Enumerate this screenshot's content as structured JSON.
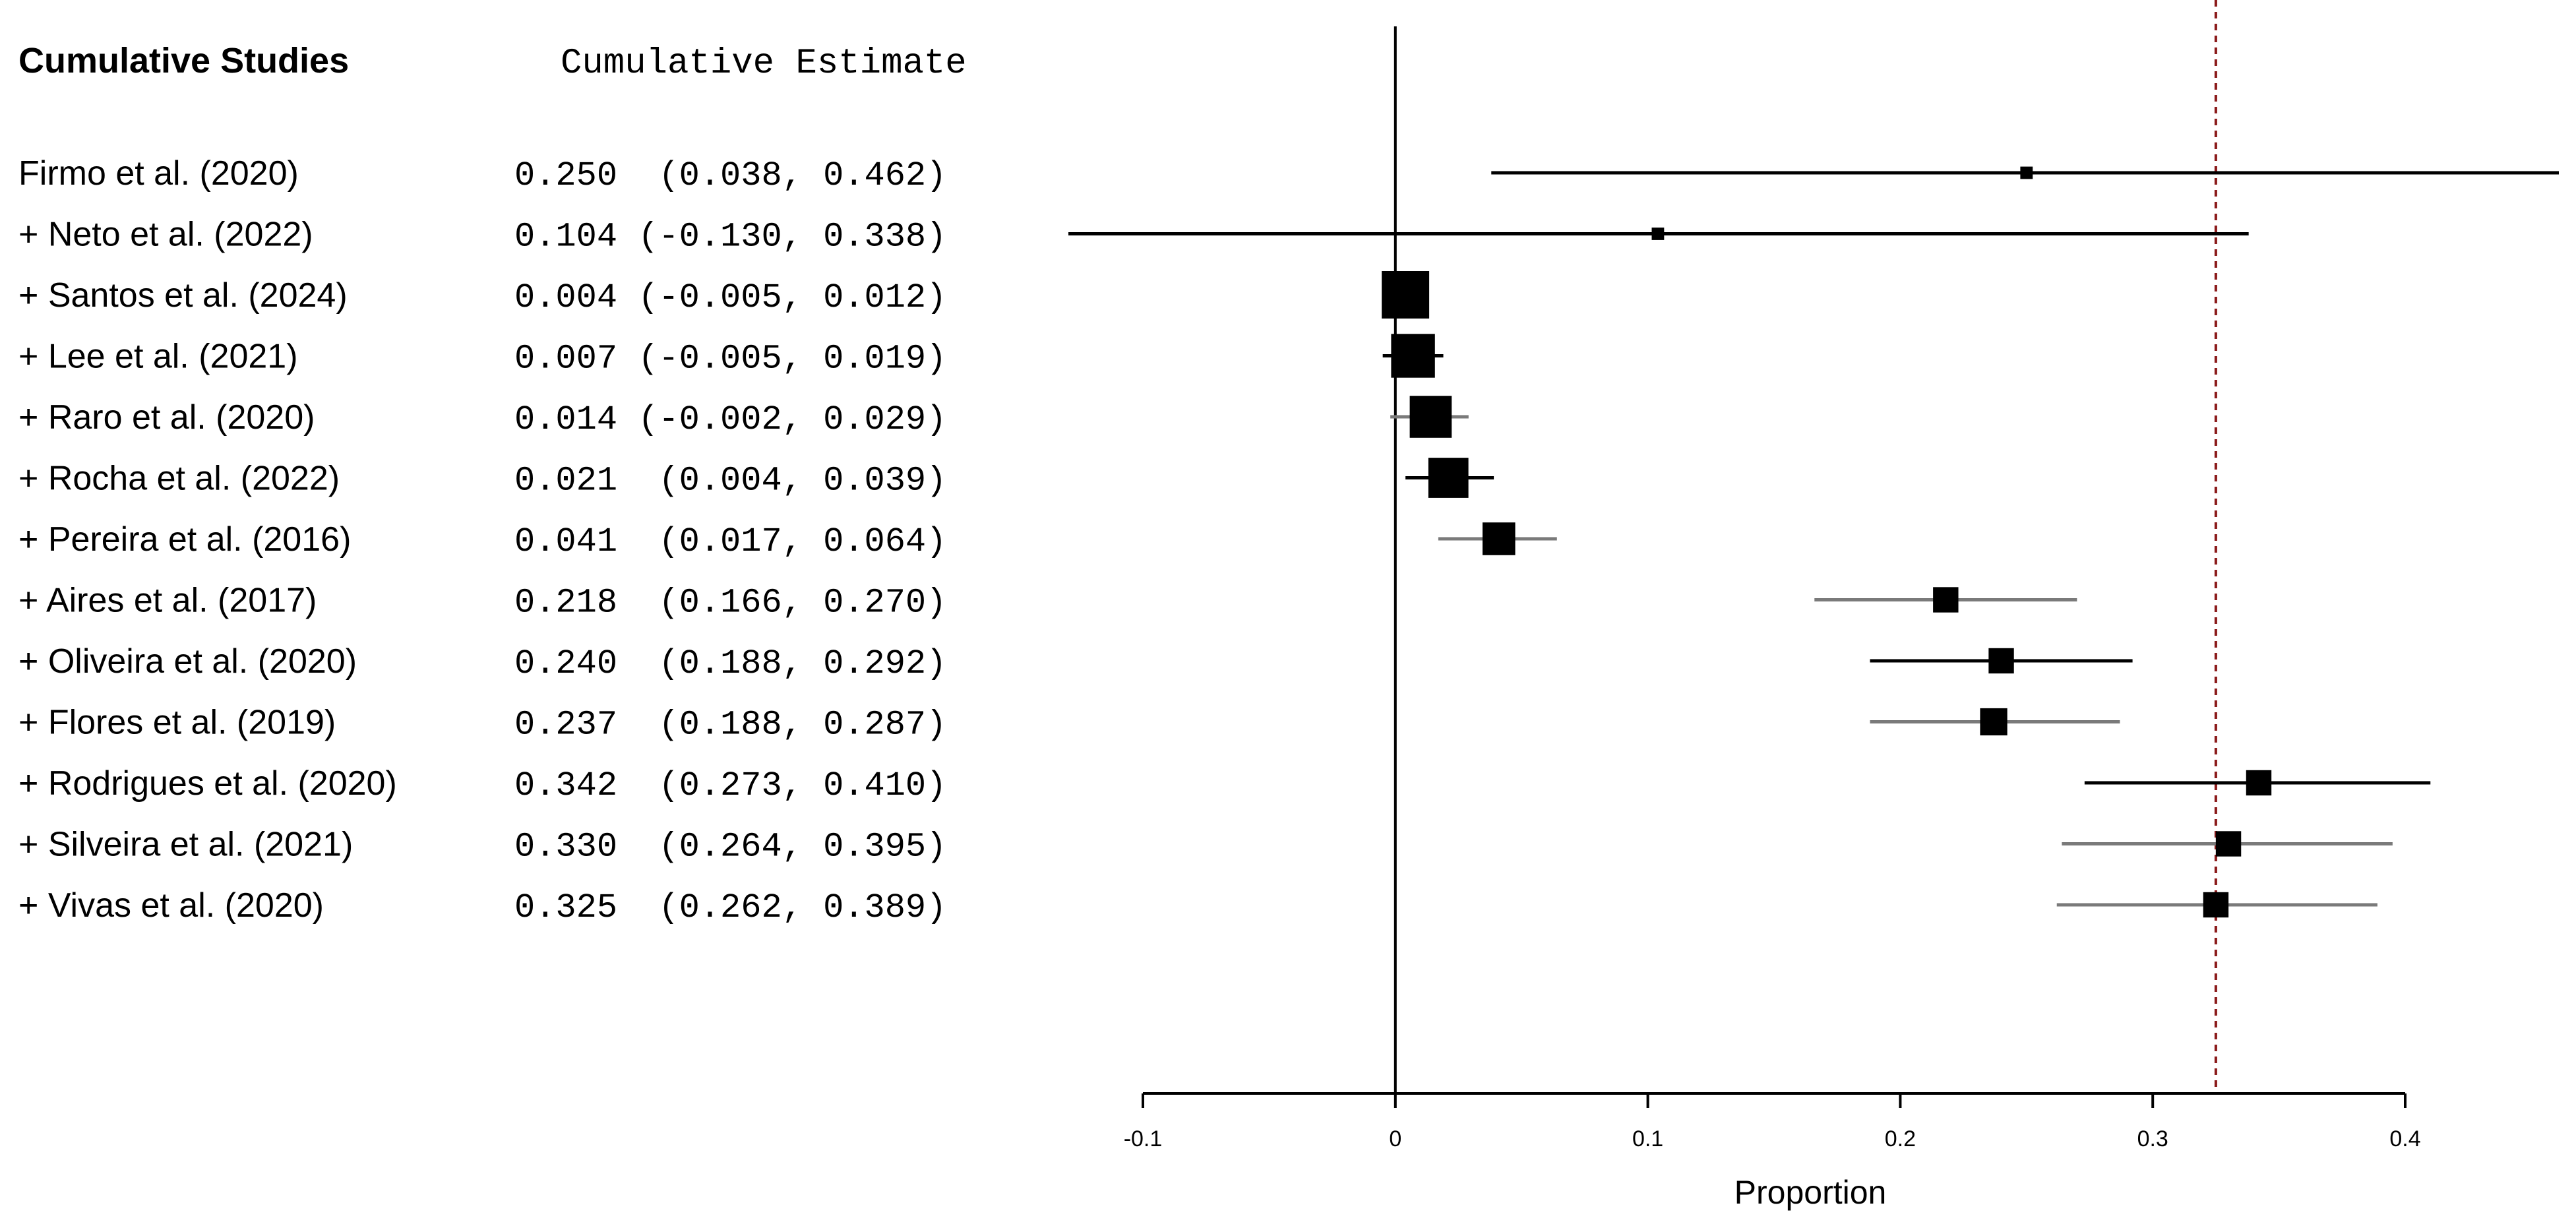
{
  "chart_data": {
    "type": "forest",
    "headers": {
      "studies": "Cumulative Studies",
      "estimate": "Cumulative Estimate"
    },
    "xlabel": "Proportion",
    "xlim": [
      -0.1,
      0.4
    ],
    "ticks": [
      -0.1,
      0,
      0.1,
      0.2,
      0.3,
      0.4
    ],
    "tick_labels": [
      "-0.1",
      "0",
      "0.1",
      "0.2",
      "0.3",
      "0.4"
    ],
    "reference_line": 0,
    "summary_line": 0.325,
    "colors": {
      "ci_black": "#000000",
      "ci_gray": "#7a7a7a",
      "summary_line": "#8b1a1a"
    },
    "rows": [
      {
        "label": "Firmo et al. (2020)",
        "estimate_text": "0.250  (0.038, 0.462)",
        "est": 0.25,
        "lo": 0.038,
        "hi": 0.462,
        "weight": 0.05,
        "ci_color": "black"
      },
      {
        "label": "+ Neto et al. (2022)",
        "estimate_text": "0.104 (-0.130, 0.338)",
        "est": 0.104,
        "lo": -0.13,
        "hi": 0.338,
        "weight": 0.05,
        "ci_color": "black"
      },
      {
        "label": "+ Santos et al. (2024)",
        "estimate_text": "0.004 (-0.005, 0.012)",
        "est": 0.004,
        "lo": -0.005,
        "hi": 0.012,
        "weight": 1.0,
        "ci_color": "gray"
      },
      {
        "label": "+ Lee et al. (2021)",
        "estimate_text": "0.007 (-0.005, 0.019)",
        "est": 0.007,
        "lo": -0.005,
        "hi": 0.019,
        "weight": 0.9,
        "ci_color": "black"
      },
      {
        "label": "+ Raro et al. (2020)",
        "estimate_text": "0.014 (-0.002, 0.029)",
        "est": 0.014,
        "lo": -0.002,
        "hi": 0.029,
        "weight": 0.85,
        "ci_color": "gray"
      },
      {
        "label": "+ Rocha et al. (2022)",
        "estimate_text": "0.021  (0.004, 0.039)",
        "est": 0.021,
        "lo": 0.004,
        "hi": 0.039,
        "weight": 0.8,
        "ci_color": "black"
      },
      {
        "label": "+ Pereira et al. (2016)",
        "estimate_text": "0.041  (0.017, 0.064)",
        "est": 0.041,
        "lo": 0.017,
        "hi": 0.064,
        "weight": 0.6,
        "ci_color": "gray"
      },
      {
        "label": "+ Aires et al. (2017)",
        "estimate_text": "0.218  (0.166, 0.270)",
        "est": 0.218,
        "lo": 0.166,
        "hi": 0.27,
        "weight": 0.4,
        "ci_color": "gray"
      },
      {
        "label": "+ Oliveira et al. (2020)",
        "estimate_text": "0.240  (0.188, 0.292)",
        "est": 0.24,
        "lo": 0.188,
        "hi": 0.292,
        "weight": 0.4,
        "ci_color": "black"
      },
      {
        "label": "+ Flores et al. (2019)",
        "estimate_text": "0.237  (0.188, 0.287)",
        "est": 0.237,
        "lo": 0.188,
        "hi": 0.287,
        "weight": 0.45,
        "ci_color": "gray"
      },
      {
        "label": "+ Rodrigues et al. (2020)",
        "estimate_text": "0.342  (0.273, 0.410)",
        "est": 0.342,
        "lo": 0.273,
        "hi": 0.41,
        "weight": 0.4,
        "ci_color": "black"
      },
      {
        "label": "+ Silveira et al. (2021)",
        "estimate_text": "0.330  (0.264, 0.395)",
        "est": 0.33,
        "lo": 0.264,
        "hi": 0.395,
        "weight": 0.4,
        "ci_color": "gray"
      },
      {
        "label": "+ Vivas et al. (2020)",
        "estimate_text": "0.325  (0.262, 0.389)",
        "est": 0.325,
        "lo": 0.262,
        "hi": 0.389,
        "weight": 0.4,
        "ci_color": "gray"
      }
    ]
  }
}
